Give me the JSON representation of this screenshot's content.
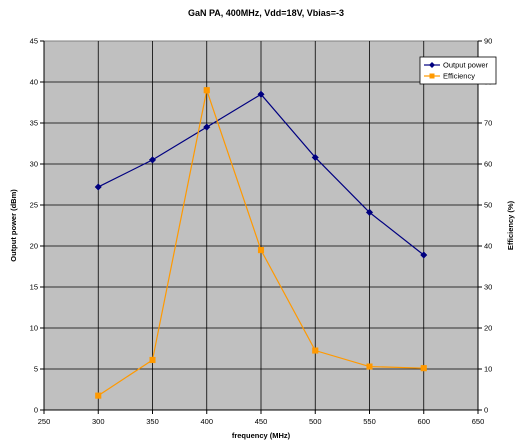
{
  "chart_data": {
    "type": "line",
    "title": "GaN PA, 400MHz, Vdd=18V, Vbias=-3",
    "xlabel": "frequency (MHz)",
    "ylabel": "Output power (dBm)",
    "y2label": "Efficiency (%)",
    "x": [
      300,
      350,
      400,
      450,
      500,
      550,
      600
    ],
    "xlim": [
      250,
      650
    ],
    "xticks": [
      250,
      300,
      350,
      400,
      450,
      500,
      550,
      600,
      650
    ],
    "ylim": [
      0,
      45
    ],
    "yticks": [
      0,
      5,
      10,
      15,
      20,
      25,
      30,
      35,
      40,
      45
    ],
    "y2lim": [
      0,
      90
    ],
    "y2ticks": [
      0,
      10,
      20,
      30,
      40,
      50,
      60,
      70,
      80,
      90
    ],
    "grid": true,
    "legend_position": "top-right",
    "series": [
      {
        "name": "Output power",
        "axis": "left",
        "color": "#000080",
        "marker": "diamond",
        "values": [
          27.2,
          30.5,
          34.5,
          38.5,
          30.8,
          24.1,
          18.9
        ]
      },
      {
        "name": "Efficiency",
        "axis": "right",
        "color": "#FF9900",
        "marker": "square",
        "values": [
          3.5,
          12.2,
          78,
          39,
          14.5,
          10.6,
          10.2
        ]
      }
    ]
  },
  "colors": {
    "plot_background": "#C0C0C0",
    "gridline": "#000000"
  }
}
